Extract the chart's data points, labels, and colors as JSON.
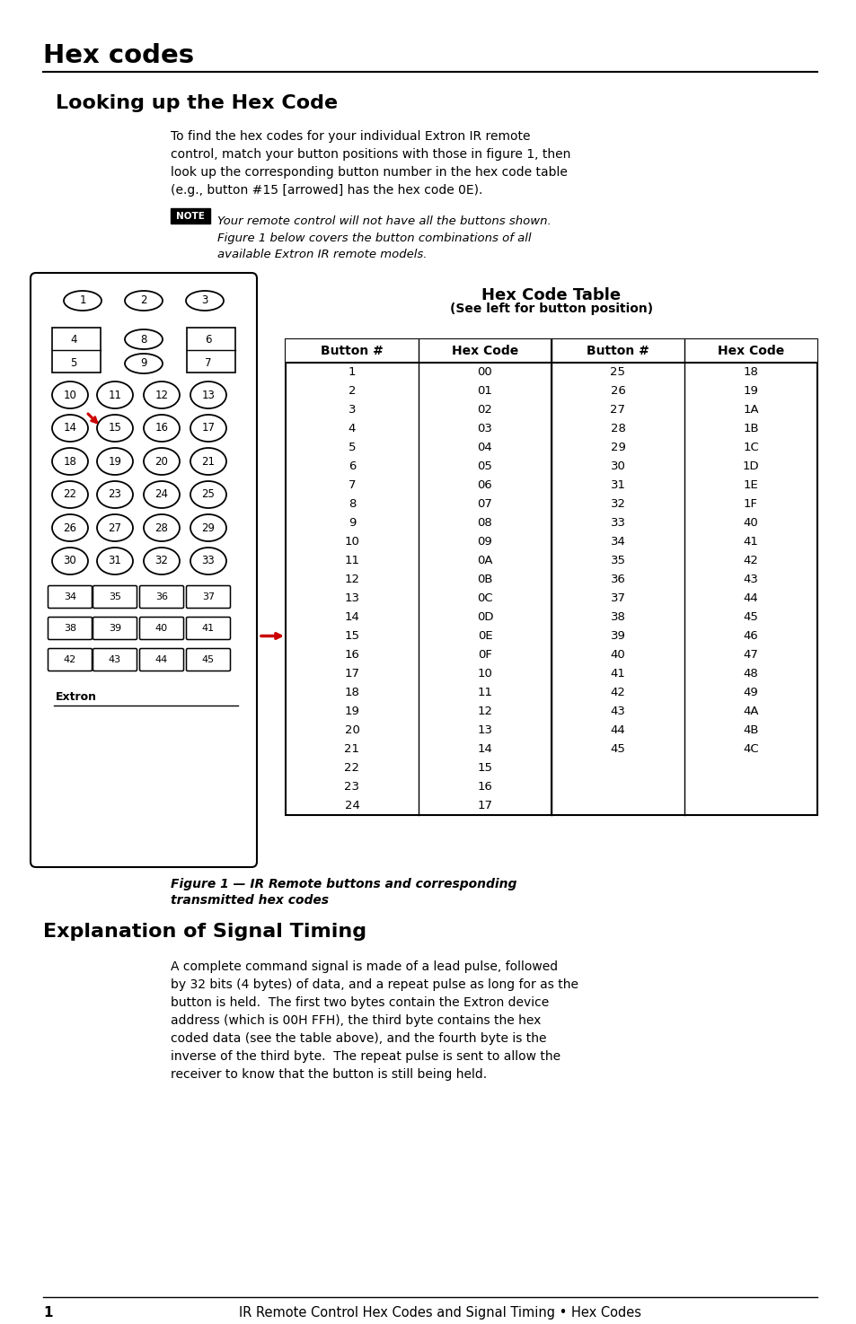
{
  "page_bg": "#ffffff",
  "main_title": "Hex codes",
  "section1_title": "Looking up the Hex Code",
  "section1_body": "To find the hex codes for your individual Extron IR remote\ncontrol, match your button positions with those in figure 1, then\nlook up the corresponding button number in the hex code table\n(e.g., button #15 [arrowed] has the hex code 0E).",
  "note_label": "NOTE",
  "note_text": "Your remote control will not have all the buttons shown.\nFigure 1 below covers the button combinations of all\navailable Extron IR remote models.",
  "table_title": "Hex Code Table",
  "table_subtitle": "(See left for button position)",
  "table_headers": [
    "Button #",
    "Hex Code",
    "Button #",
    "Hex Code"
  ],
  "table_col1": [
    1,
    2,
    3,
    4,
    5,
    6,
    7,
    8,
    9,
    10,
    11,
    12,
    13,
    14,
    15,
    16,
    17,
    18,
    19,
    20,
    21,
    22,
    23,
    24
  ],
  "table_col2": [
    "00",
    "01",
    "02",
    "03",
    "04",
    "05",
    "06",
    "07",
    "08",
    "09",
    "0A",
    "0B",
    "0C",
    "0D",
    "0E",
    "0F",
    "10",
    "11",
    "12",
    "13",
    "14",
    "15",
    "16",
    "17"
  ],
  "table_col3": [
    25,
    26,
    27,
    28,
    29,
    30,
    31,
    32,
    33,
    34,
    35,
    36,
    37,
    38,
    39,
    40,
    41,
    42,
    43,
    44,
    45,
    "",
    "",
    ""
  ],
  "table_col4": [
    "18",
    "19",
    "1A",
    "1B",
    "1C",
    "1D",
    "1E",
    "1F",
    "40",
    "41",
    "42",
    "43",
    "44",
    "45",
    "46",
    "47",
    "48",
    "49",
    "4A",
    "4B",
    "4C",
    "",
    "",
    ""
  ],
  "figure_caption_line1": "Figure 1 — IR Remote buttons and corresponding",
  "figure_caption_line2": "transmitted hex codes",
  "section2_title": "Explanation of Signal Timing",
  "section2_body": "A complete command signal is made of a lead pulse, followed\nby 32 bits (4 bytes) of data, and a repeat pulse as long for as the\nbutton is held.  The first two bytes contain the Extron device\naddress (which is 00H FFH), the third byte contains the hex\ncoded data (see the table above), and the fourth byte is the\ninverse of the third byte.  The repeat pulse is sent to allow the\nreceiver to know that the button is still being held.",
  "footer_num": "1",
  "footer_text": "IR Remote Control Hex Codes and Signal Timing • Hex Codes",
  "shade_color": "#d8d8d8"
}
